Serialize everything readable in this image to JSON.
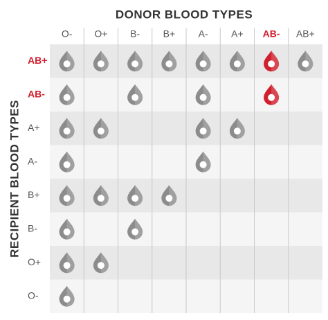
{
  "header": {
    "title": "DONOR BLOOD TYPES",
    "side_title": "RECIPIENT BLOOD TYPES"
  },
  "icon_color": "#8c8c8c",
  "highlight_color": "#d0202e",
  "columns": [
    {
      "label": "O-",
      "highlight": false
    },
    {
      "label": "O+",
      "highlight": false
    },
    {
      "label": "B-",
      "highlight": false
    },
    {
      "label": "B+",
      "highlight": false
    },
    {
      "label": "A-",
      "highlight": false
    },
    {
      "label": "A+",
      "highlight": false
    },
    {
      "label": "AB-",
      "highlight": true
    },
    {
      "label": "AB+",
      "highlight": false
    }
  ],
  "rows": [
    {
      "label": "AB+",
      "highlight": true,
      "compatible": [
        true,
        true,
        true,
        true,
        true,
        true,
        true,
        true
      ]
    },
    {
      "label": "AB-",
      "highlight": true,
      "compatible": [
        true,
        false,
        true,
        false,
        true,
        false,
        true,
        false
      ]
    },
    {
      "label": "A+",
      "highlight": false,
      "compatible": [
        true,
        true,
        false,
        false,
        true,
        true,
        false,
        false
      ]
    },
    {
      "label": "A-",
      "highlight": false,
      "compatible": [
        true,
        false,
        false,
        false,
        true,
        false,
        false,
        false
      ]
    },
    {
      "label": "B+",
      "highlight": false,
      "compatible": [
        true,
        true,
        true,
        true,
        false,
        false,
        false,
        false
      ]
    },
    {
      "label": "B-",
      "highlight": false,
      "compatible": [
        true,
        false,
        true,
        false,
        false,
        false,
        false,
        false
      ]
    },
    {
      "label": "O+",
      "highlight": false,
      "compatible": [
        true,
        true,
        false,
        false,
        false,
        false,
        false,
        false
      ]
    },
    {
      "label": "O-",
      "highlight": false,
      "compatible": [
        true,
        false,
        false,
        false,
        false,
        false,
        false,
        false
      ]
    }
  ]
}
